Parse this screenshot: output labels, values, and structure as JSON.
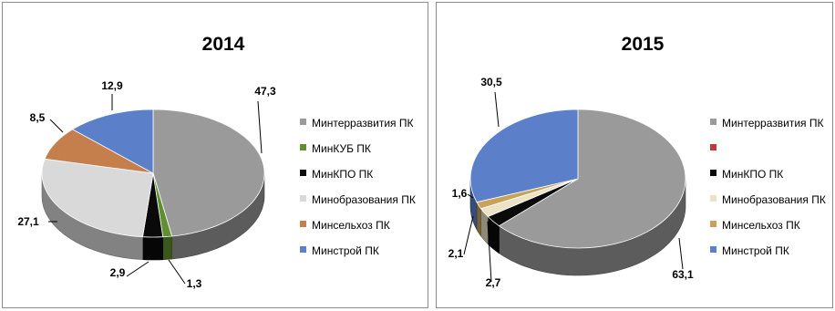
{
  "chart_data": [
    {
      "type": "pie",
      "title": "2014",
      "series": [
        {
          "name": "Минтерразвития ПК",
          "value": 47.3,
          "label": "47,3",
          "color": "#9a9a9a"
        },
        {
          "name": "МинКУБ ПК",
          "value": 1.3,
          "label": "1,3",
          "color": "#5f8f2e"
        },
        {
          "name": "МинКПО ПК",
          "value": 2.9,
          "label": "2,9",
          "color": "#0a0a0a"
        },
        {
          "name": "Минобразования ПК",
          "value": 27.1,
          "label": "27,1",
          "color": "#d9d9d9"
        },
        {
          "name": "Минсельхоз ПК",
          "value": 8.5,
          "label": "8,5",
          "color": "#c57f4d"
        },
        {
          "name": "Минстрой ПК",
          "value": 12.9,
          "label": "12,9",
          "color": "#5b7fc9"
        }
      ],
      "legend_position": "right"
    },
    {
      "type": "pie",
      "title": "2015",
      "series": [
        {
          "name": "Минтерразвития ПК",
          "value": 63.1,
          "label": "63,1",
          "color": "#9a9a9a"
        },
        {
          "name": "",
          "value": 0,
          "label": "",
          "color": "#c0393b"
        },
        {
          "name": "МинКПО ПК",
          "value": 2.7,
          "label": "2,7",
          "color": "#0a0a0a"
        },
        {
          "name": "Минобразования ПК",
          "value": 2.1,
          "label": "2,1",
          "color": "#ece3c6"
        },
        {
          "name": "Минсельхоз ПК",
          "value": 1.6,
          "label": "1,6",
          "color": "#c9a25a"
        },
        {
          "name": "Минстрой ПК",
          "value": 30.5,
          "label": "30,5",
          "color": "#5b7fc9"
        }
      ],
      "legend_position": "right"
    }
  ]
}
